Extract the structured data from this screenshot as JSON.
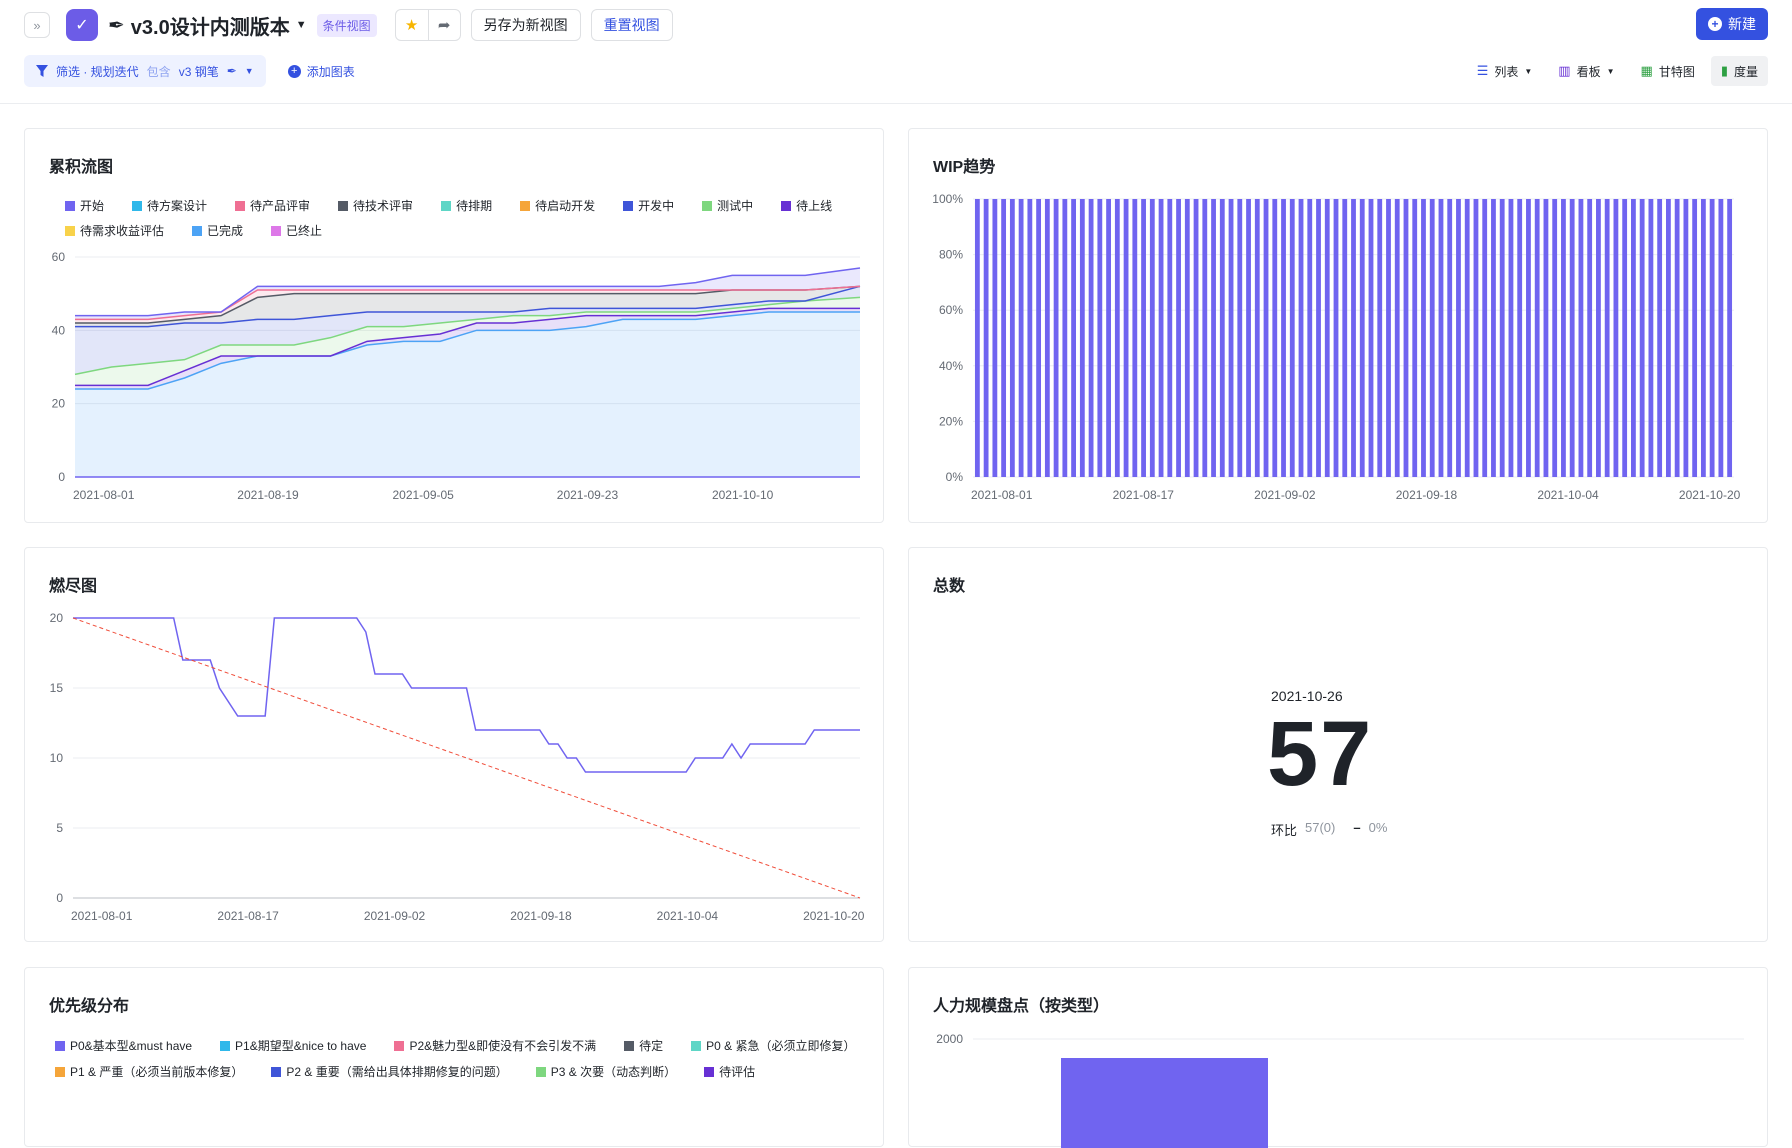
{
  "header": {
    "title": "v3.0设计内测版本",
    "view_tag": "条件视图",
    "save_as": "另存为新视图",
    "reset": "重置视图",
    "new": "新建"
  },
  "filter": {
    "label": "筛选 · 规划迭代",
    "op": "包含",
    "value": "v3 钢笔"
  },
  "add_chart": "添加图表",
  "views": [
    {
      "label": "列表",
      "icon": "list-icon"
    },
    {
      "label": "看板",
      "icon": "kanban-icon"
    },
    {
      "label": "甘特图",
      "icon": "gantt-icon"
    },
    {
      "label": "度量",
      "icon": "bar-chart-icon"
    }
  ],
  "colors": {
    "primary": "#3451e0",
    "purple": "#7064f0"
  },
  "cfd": {
    "title": "累积流图",
    "legend": [
      {
        "name": "开始",
        "color": "#7064f0"
      },
      {
        "name": "待方案设计",
        "color": "#2fb8ea"
      },
      {
        "name": "待产品评审",
        "color": "#ef6f93"
      },
      {
        "name": "待技术评审",
        "color": "#555b66"
      },
      {
        "name": "待排期",
        "color": "#5ed6c6"
      },
      {
        "name": "待启动开发",
        "color": "#f5a53a"
      },
      {
        "name": "开发中",
        "color": "#3f55d8"
      },
      {
        "name": "测试中",
        "color": "#7ed77f"
      },
      {
        "name": "待上线",
        "color": "#6730d4"
      },
      {
        "name": "待需求收益评估",
        "color": "#f8d24a"
      },
      {
        "name": "已完成",
        "color": "#4ca3f5"
      },
      {
        "name": "已终止",
        "color": "#dd78e8"
      }
    ]
  },
  "wip": {
    "title": "WIP趋势"
  },
  "burndown": {
    "title": "燃尽图"
  },
  "total": {
    "title": "总数",
    "date": "2021-10-26",
    "value": "57",
    "cmp_label": "环比",
    "cmp_value": "57(0)",
    "cmp_change": "0%"
  },
  "priority": {
    "title": "优先级分布",
    "legend": [
      {
        "name": "P0&基本型&must have",
        "color": "#7064f0"
      },
      {
        "name": "P1&期望型&nice to have",
        "color": "#2fb8ea"
      },
      {
        "name": "P2&魅力型&即使没有不会引发不满",
        "color": "#ef6f93"
      },
      {
        "name": "待定",
        "color": "#555b66"
      },
      {
        "name": "P0 & 紧急（必须立即修复）",
        "color": "#5ed6c6"
      },
      {
        "name": "P1 & 严重（必须当前版本修复）",
        "color": "#f5a53a"
      },
      {
        "name": "P2 & 重要（需给出具体排期修复的问题）",
        "color": "#3f55d8"
      },
      {
        "name": "P3 & 次要（动态判断）",
        "color": "#7ed77f"
      },
      {
        "name": "待评估",
        "color": "#6730d4"
      }
    ]
  },
  "manpower": {
    "title": "人力规模盘点（按类型）"
  },
  "chart_data": [
    {
      "type": "area",
      "title": "累积流图",
      "ylim": [
        0,
        60
      ],
      "yticks": [
        0,
        20,
        40,
        60
      ],
      "xticks": [
        "2021-08-01",
        "2021-08-19",
        "2021-09-05",
        "2021-09-23",
        "2021-10-10"
      ],
      "x": [
        "2021-08-01",
        "2021-08-05",
        "2021-08-09",
        "2021-08-13",
        "2021-08-17",
        "2021-08-21",
        "2021-08-25",
        "2021-08-29",
        "2021-09-02",
        "2021-09-06",
        "2021-09-10",
        "2021-09-14",
        "2021-09-18",
        "2021-09-22",
        "2021-09-26",
        "2021-09-30",
        "2021-10-04",
        "2021-10-08",
        "2021-10-12",
        "2021-10-16",
        "2021-10-20",
        "2021-10-26"
      ],
      "series": [
        {
          "name": "已完成",
          "color": "#4ca3f5",
          "values": [
            24,
            24,
            24,
            27,
            31,
            33,
            33,
            33,
            36,
            37,
            37,
            40,
            40,
            40,
            41,
            43,
            43,
            43,
            44,
            45,
            45,
            45
          ]
        },
        {
          "name": "待上线",
          "color": "#6730d4",
          "values": [
            25,
            25,
            25,
            29,
            33,
            33,
            33,
            33,
            37,
            38,
            39,
            42,
            42,
            43,
            44,
            44,
            44,
            44,
            45,
            46,
            46,
            46
          ]
        },
        {
          "name": "测试中",
          "color": "#7ed77f",
          "values": [
            28,
            30,
            31,
            32,
            36,
            36,
            36,
            38,
            41,
            41,
            42,
            43,
            44,
            44,
            45,
            45,
            45,
            45,
            46,
            47,
            48,
            49
          ]
        },
        {
          "name": "开发中",
          "color": "#3f55d8",
          "values": [
            41,
            41,
            41,
            42,
            42,
            43,
            43,
            44,
            45,
            45,
            45,
            45,
            45,
            46,
            46,
            46,
            46,
            46,
            47,
            48,
            48,
            52
          ]
        },
        {
          "name": "待技术评审",
          "color": "#555b66",
          "values": [
            42,
            42,
            42,
            43,
            44,
            49,
            50,
            50,
            50,
            50,
            50,
            50,
            50,
            50,
            50,
            50,
            50,
            50,
            51,
            51,
            51,
            52
          ]
        },
        {
          "name": "待产品评审",
          "color": "#ef6f93",
          "values": [
            43,
            43,
            43,
            44,
            45,
            51,
            51,
            51,
            51,
            51,
            51,
            51,
            51,
            51,
            51,
            51,
            51,
            51,
            51,
            51,
            51,
            52
          ]
        },
        {
          "name": "开始",
          "color": "#7064f0",
          "values": [
            44,
            44,
            44,
            45,
            45,
            52,
            52,
            52,
            52,
            52,
            52,
            52,
            52,
            52,
            52,
            52,
            52,
            53,
            55,
            55,
            55,
            57
          ]
        }
      ]
    },
    {
      "type": "bar",
      "title": "WIP趋势",
      "ylim": [
        0,
        100
      ],
      "yticks": [
        "0%",
        "20%",
        "40%",
        "60%",
        "80%",
        "100%"
      ],
      "xticks": [
        "2021-08-01",
        "2021-08-17",
        "2021-09-02",
        "2021-09-18",
        "2021-10-04",
        "2021-10-20"
      ],
      "bar_count": 87,
      "value_all_bars": 100,
      "color": "#7064f0"
    },
    {
      "type": "line",
      "title": "燃尽图",
      "ylim": [
        0,
        20
      ],
      "yticks": [
        0,
        5,
        10,
        15,
        20
      ],
      "xticks": [
        "2021-08-01",
        "2021-08-17",
        "2021-09-02",
        "2021-09-18",
        "2021-10-04",
        "2021-10-20"
      ],
      "series": [
        {
          "color": "#7064f0",
          "points": [
            [
              "2021-08-01",
              20
            ],
            [
              "2021-08-12",
              20
            ],
            [
              "2021-08-13",
              17
            ],
            [
              "2021-08-16",
              17
            ],
            [
              "2021-08-17",
              15
            ],
            [
              "2021-08-19",
              13
            ],
            [
              "2021-08-22",
              13
            ],
            [
              "2021-08-23",
              20
            ],
            [
              "2021-09-01",
              20
            ],
            [
              "2021-09-02",
              19
            ],
            [
              "2021-09-03",
              16
            ],
            [
              "2021-09-06",
              16
            ],
            [
              "2021-09-07",
              15
            ],
            [
              "2021-09-13",
              15
            ],
            [
              "2021-09-14",
              12
            ],
            [
              "2021-09-21",
              12
            ],
            [
              "2021-09-22",
              11
            ],
            [
              "2021-09-23",
              11
            ],
            [
              "2021-09-24",
              10
            ],
            [
              "2021-09-25",
              10
            ],
            [
              "2021-09-26",
              9
            ],
            [
              "2021-10-07",
              9
            ],
            [
              "2021-10-08",
              10
            ],
            [
              "2021-10-11",
              10
            ],
            [
              "2021-10-12",
              11
            ],
            [
              "2021-10-13",
              10
            ],
            [
              "2021-10-14",
              11
            ],
            [
              "2021-10-20",
              11
            ],
            [
              "2021-10-21",
              12
            ],
            [
              "2021-10-26",
              12
            ]
          ]
        },
        {
          "color": "#f04d3a",
          "dashed": true,
          "points": [
            [
              "2021-08-01",
              20
            ],
            [
              "2021-10-26",
              0
            ]
          ]
        }
      ]
    },
    {
      "type": "bar",
      "title": "人力规模盘点（按类型）",
      "yticks": [
        2000
      ],
      "color": "#7064f0"
    }
  ]
}
